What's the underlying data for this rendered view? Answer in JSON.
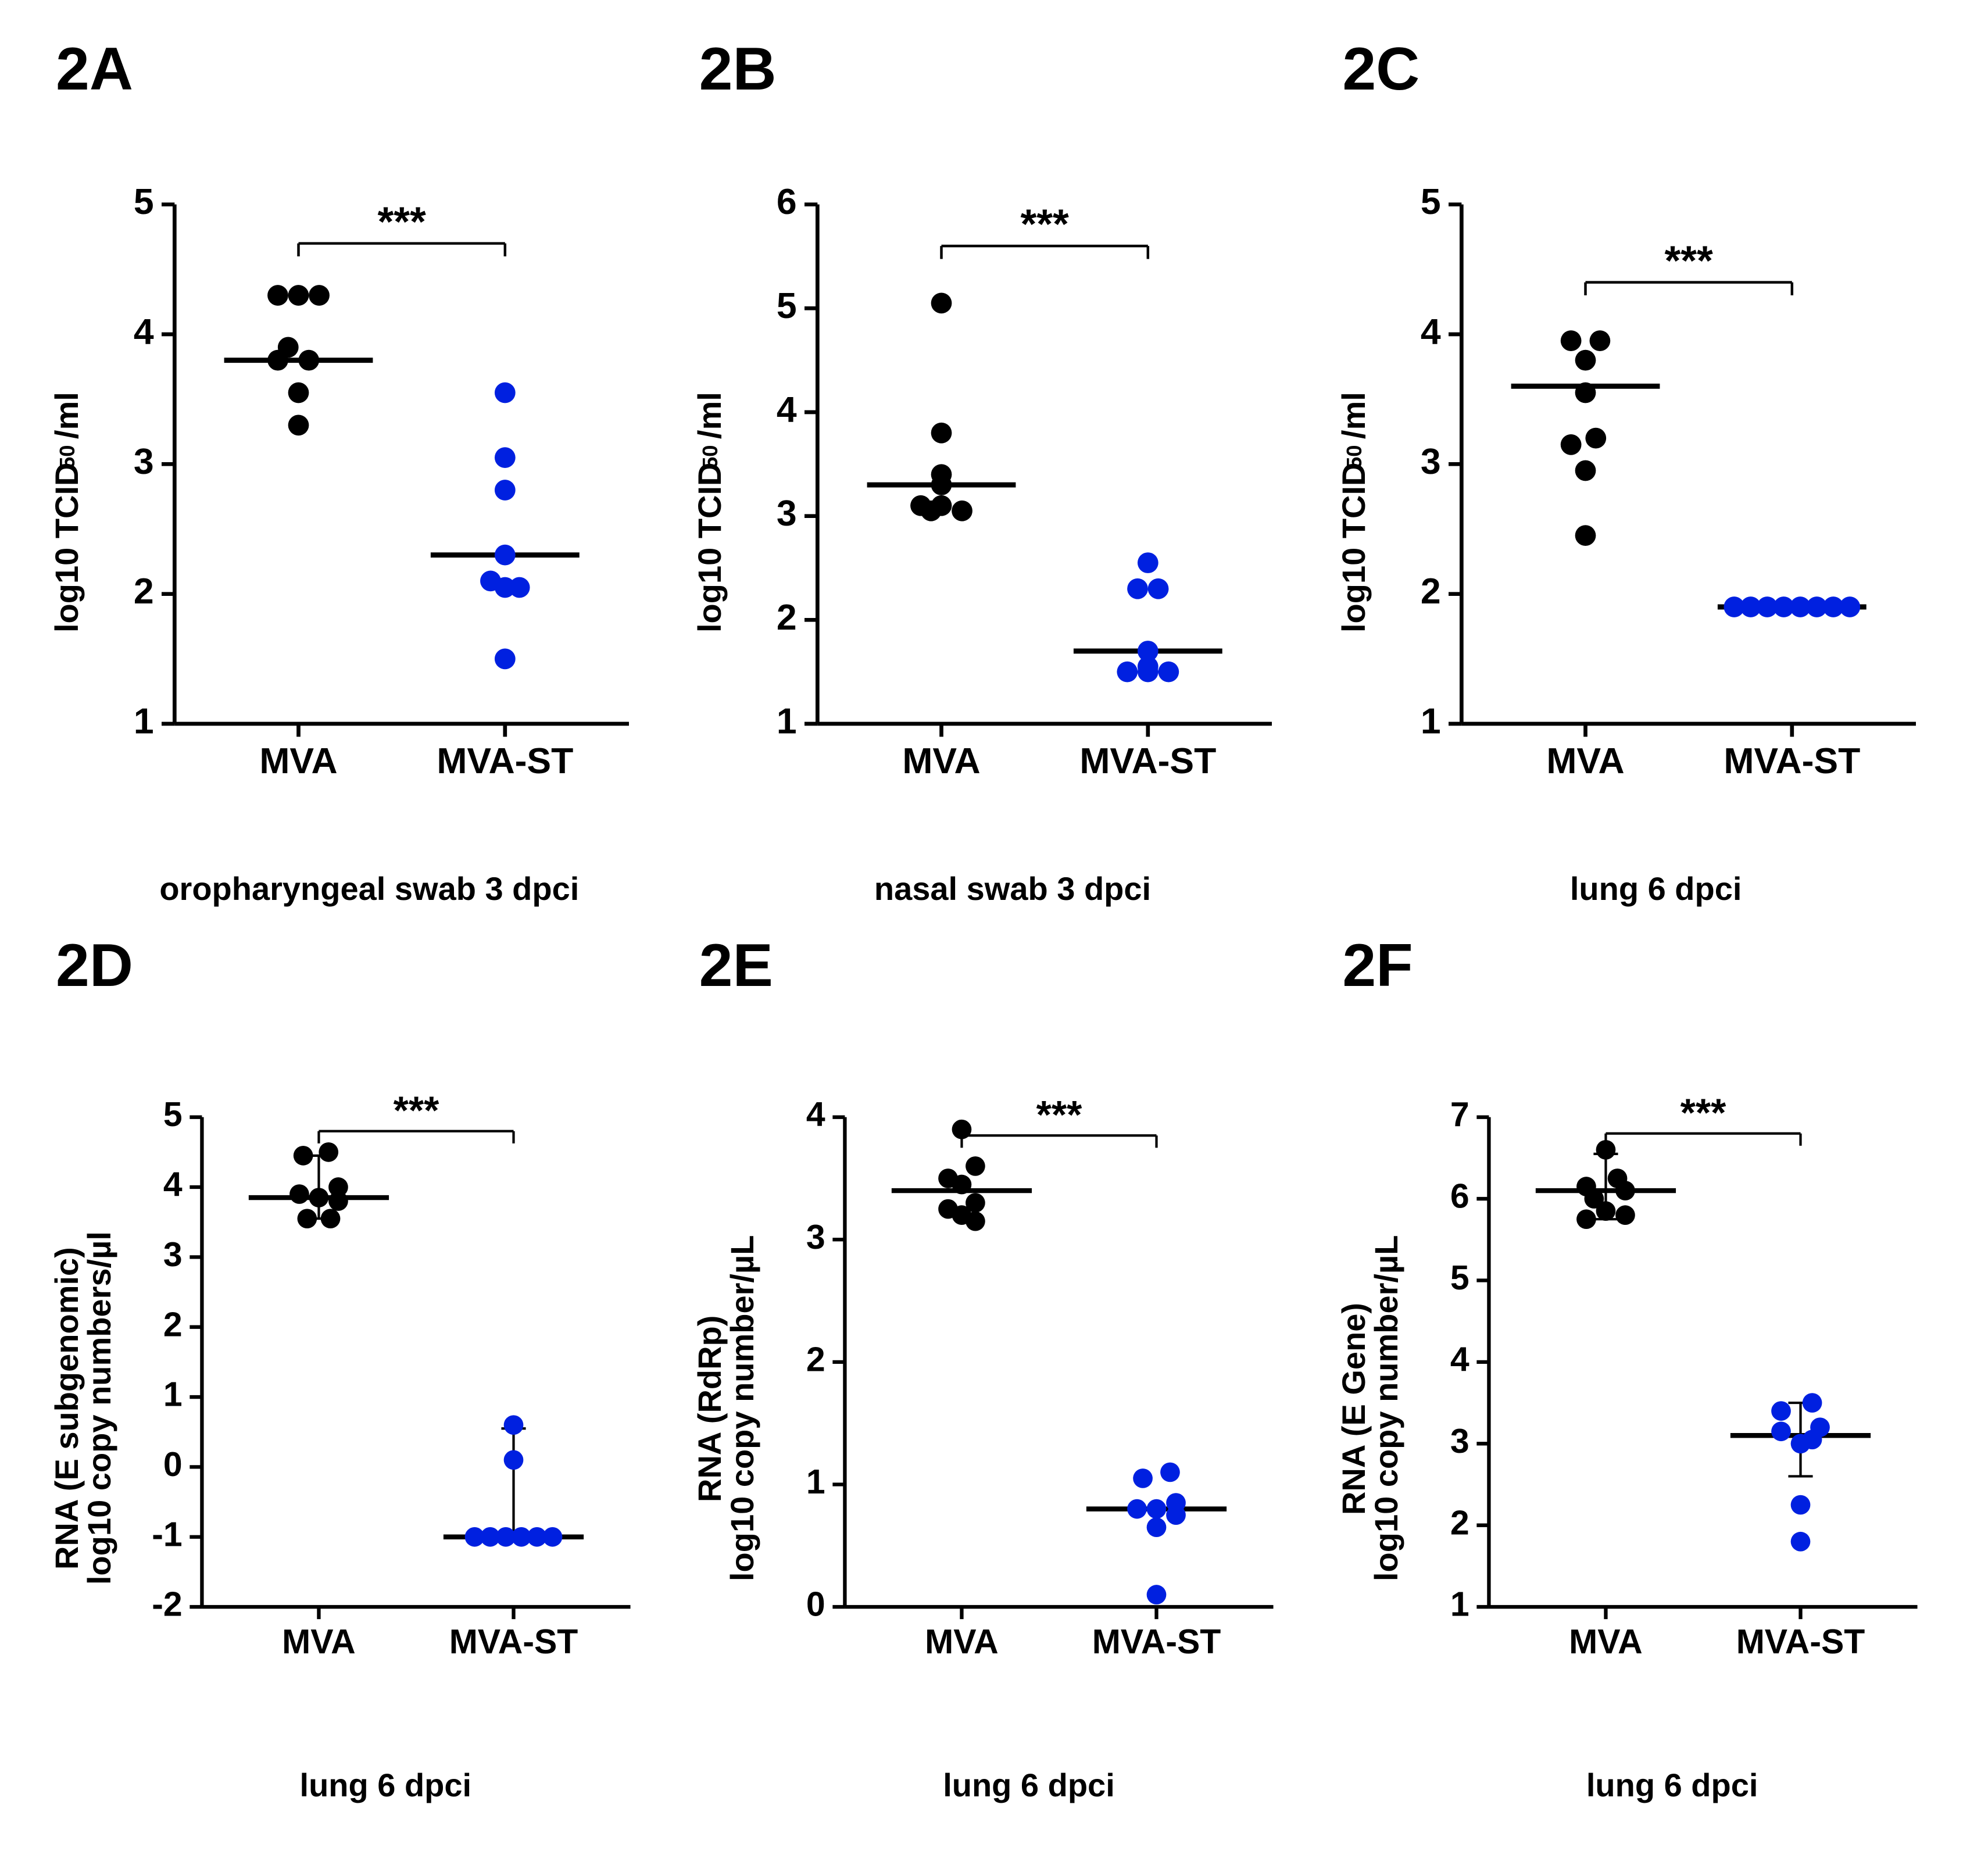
{
  "figure": {
    "background_color": "#ffffff",
    "axis_color": "#000000",
    "axis_width": 3,
    "tick_length": 10,
    "tick_width": 3,
    "tick_fontsize": 28,
    "title_fontsize": 52,
    "title_fontweight": 700,
    "axis_label_fontsize": 28,
    "axis_label_fontweight": 600,
    "xlabel_fontsize": 28,
    "colors": {
      "mva": "#000000",
      "mvast": "#0020e0"
    },
    "marker_radius": 8,
    "median_line_halfwidth": 0.18,
    "sig_label": "***",
    "sig_fontsize": 32,
    "categories": [
      "MVA",
      "MVA-ST"
    ],
    "category_x": [
      1,
      2
    ],
    "xlim": [
      0.4,
      2.6
    ]
  },
  "panels": {
    "A": {
      "title": "2A",
      "type": "dotplot",
      "xlabel": "oropharyngeal swab 3 dpci",
      "ylabel_lines": [
        "log10 TCID",
        "50",
        "/ml"
      ],
      "ylabel_mode": "sub50",
      "ylim": [
        1,
        5
      ],
      "ytick_step": 1,
      "sig_y": 4.7,
      "median": {
        "mva": 3.8,
        "mvast": 2.3
      },
      "error_bars": null,
      "points": {
        "mva": [
          4.3,
          4.3,
          4.3,
          3.9,
          3.8,
          3.8,
          3.55,
          3.3
        ],
        "mvast": [
          3.55,
          3.05,
          2.8,
          2.3,
          2.1,
          2.05,
          2.05,
          1.5
        ]
      },
      "jitter": {
        "mva": [
          -0.1,
          0.0,
          0.1,
          -0.05,
          0.05,
          -0.1,
          0.0,
          0.0
        ],
        "mvast": [
          0.0,
          0.0,
          0.0,
          0.0,
          -0.07,
          0.0,
          0.07,
          0.0
        ]
      }
    },
    "B": {
      "title": "2B",
      "type": "dotplot",
      "xlabel": "nasal swab 3 dpci",
      "ylabel_lines": [
        "log10 TCID",
        "50",
        "/ml"
      ],
      "ylabel_mode": "sub50",
      "ylim": [
        1,
        6
      ],
      "ytick_step": 1,
      "sig_y": 5.6,
      "median": {
        "mva": 3.3,
        "mvast": 1.7
      },
      "error_bars": null,
      "points": {
        "mva": [
          5.05,
          3.8,
          3.4,
          3.3,
          3.1,
          3.1,
          3.05,
          3.05
        ],
        "mvast": [
          2.55,
          2.3,
          2.3,
          1.7,
          1.55,
          1.5,
          1.5,
          1.5
        ]
      },
      "jitter": {
        "mva": [
          0.0,
          0.0,
          0.0,
          0.0,
          -0.1,
          0.0,
          0.1,
          -0.05
        ],
        "mvast": [
          0.0,
          -0.05,
          0.05,
          0.0,
          0.0,
          -0.1,
          0.0,
          0.1
        ]
      }
    },
    "C": {
      "title": "2C",
      "type": "dotplot",
      "xlabel": "lung 6 dpci",
      "ylabel_lines": [
        "log10 TCID",
        "50",
        "/ml"
      ],
      "ylabel_mode": "sub50",
      "ylim": [
        1,
        5
      ],
      "ytick_step": 1,
      "sig_y": 4.4,
      "median": {
        "mva": 3.6,
        "mvast": 1.9
      },
      "error_bars": null,
      "points": {
        "mva": [
          3.95,
          3.95,
          3.8,
          3.55,
          3.2,
          3.15,
          2.95,
          2.45
        ],
        "mvast": [
          1.9,
          1.9,
          1.9,
          1.9,
          1.9,
          1.9,
          1.9,
          1.9
        ]
      },
      "jitter": {
        "mva": [
          -0.07,
          0.07,
          0.0,
          0.0,
          0.05,
          -0.07,
          0.0,
          0.0
        ],
        "mvast": [
          -0.28,
          -0.2,
          -0.12,
          -0.04,
          0.04,
          0.12,
          0.2,
          0.28
        ]
      }
    },
    "D": {
      "title": "2D",
      "type": "dotplot",
      "xlabel": "lung 6 dpci",
      "ylabel_lines": [
        "RNA (E subgenomic)",
        "log10 copy numbers/µl"
      ],
      "ylabel_mode": "twoline",
      "ylim": [
        -2,
        5
      ],
      "ytick_step": 1,
      "sig_y": 4.8,
      "median": {
        "mva": 3.85,
        "mvast": -1.0
      },
      "error_bars": {
        "mva": [
          3.55,
          4.45
        ],
        "mvast": [
          -1.0,
          0.55
        ]
      },
      "points": {
        "mva": [
          4.5,
          4.45,
          4.0,
          3.9,
          3.85,
          3.8,
          3.55,
          3.55
        ],
        "mvast": [
          0.6,
          0.1,
          -1.0,
          -1.0,
          -1.0,
          -1.0,
          -1.0,
          -1.0
        ]
      },
      "jitter": {
        "mva": [
          0.05,
          -0.08,
          0.1,
          -0.1,
          0.0,
          0.1,
          -0.06,
          0.06
        ],
        "mvast": [
          0.0,
          0.0,
          -0.2,
          -0.12,
          -0.04,
          0.04,
          0.12,
          0.2
        ]
      }
    },
    "E": {
      "title": "2E",
      "type": "dotplot",
      "xlabel": "lung 6 dpci",
      "ylabel_lines": [
        "RNA (RdRp)",
        "log10 copy number/µL"
      ],
      "ylabel_mode": "twoline",
      "ylim": [
        0,
        4
      ],
      "ytick_step": 1,
      "sig_y": 3.85,
      "median": {
        "mva": 3.4,
        "mvast": 0.8
      },
      "error_bars": null,
      "points": {
        "mva": [
          3.9,
          3.6,
          3.5,
          3.45,
          3.3,
          3.25,
          3.2,
          3.15
        ],
        "mvast": [
          1.1,
          1.05,
          0.85,
          0.8,
          0.8,
          0.75,
          0.65,
          0.1
        ]
      },
      "jitter": {
        "mva": [
          0.0,
          0.07,
          -0.07,
          0.0,
          0.07,
          -0.07,
          0.0,
          0.07
        ],
        "mvast": [
          0.07,
          -0.07,
          0.1,
          -0.1,
          0.0,
          0.1,
          0.0,
          0.0
        ]
      }
    },
    "F": {
      "title": "2F",
      "type": "dotplot",
      "xlabel": "lung 6 dpci",
      "ylabel_lines": [
        "RNA (E Gene)",
        "log10 copy number/µL"
      ],
      "ylabel_mode": "twoline",
      "ylim": [
        1,
        7
      ],
      "ytick_step": 1,
      "sig_y": 6.8,
      "median": {
        "mva": 6.1,
        "mvast": 3.1
      },
      "error_bars": {
        "mva": [
          5.75,
          6.55
        ],
        "mvast": [
          2.6,
          3.5
        ]
      },
      "points": {
        "mva": [
          6.6,
          6.25,
          6.15,
          6.1,
          6.0,
          5.85,
          5.8,
          5.75
        ],
        "mvast": [
          3.5,
          3.4,
          3.2,
          3.15,
          3.05,
          3.0,
          2.25,
          1.8
        ]
      },
      "jitter": {
        "mva": [
          0.0,
          0.06,
          -0.1,
          0.1,
          -0.06,
          0.0,
          0.1,
          -0.1
        ],
        "mvast": [
          0.06,
          -0.1,
          0.1,
          -0.1,
          0.06,
          0.0,
          0.0,
          0.0
        ]
      }
    }
  }
}
